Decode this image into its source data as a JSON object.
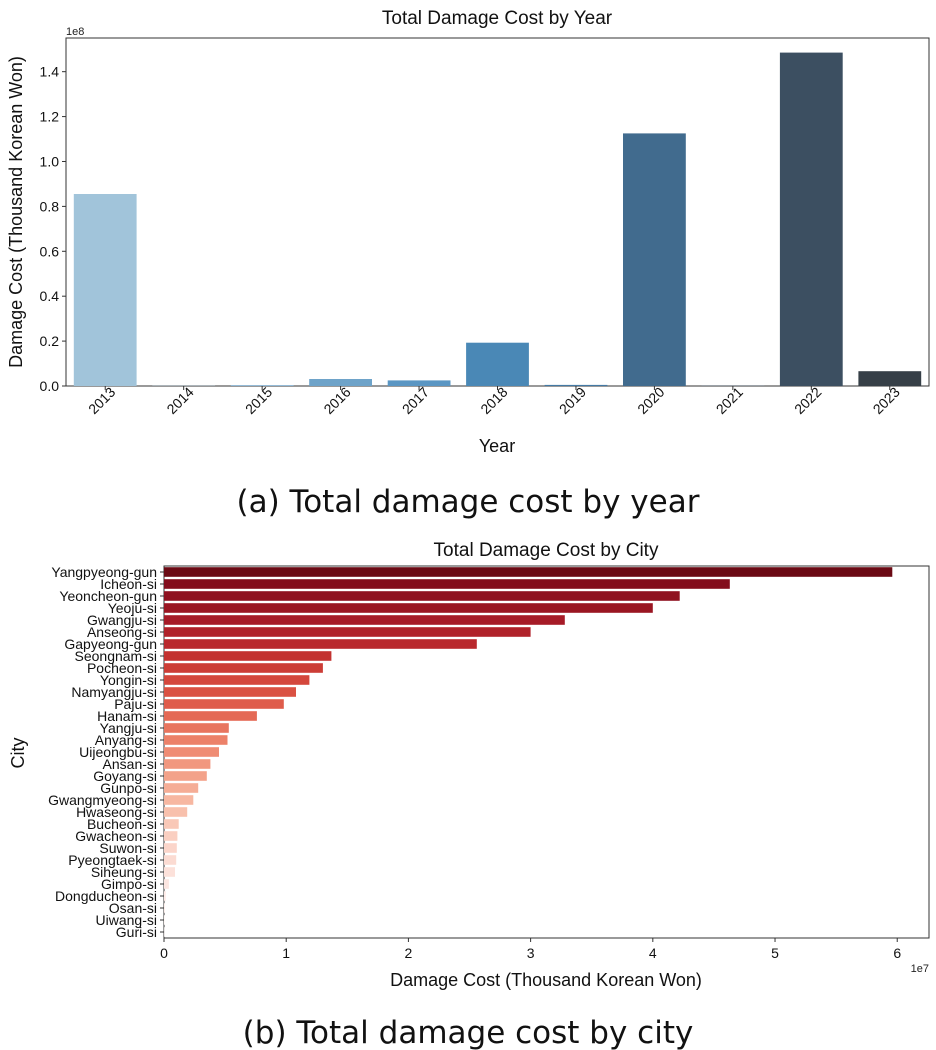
{
  "chart_data": [
    {
      "type": "bar",
      "orientation": "vertical",
      "title": "Total Damage Cost by Year",
      "xlabel": "Year",
      "ylabel": "Damage Cost (Thousand Korean Won)",
      "exponent_label": "1e8",
      "ylim": [
        0,
        155000000
      ],
      "yticks": [
        0,
        20000000,
        40000000,
        60000000,
        80000000,
        100000000,
        120000000,
        140000000
      ],
      "ytick_labels": [
        "0.0",
        "0.2",
        "0.4",
        "0.6",
        "0.8",
        "1.0",
        "1.2",
        "1.4"
      ],
      "categories": [
        "2013",
        "2014",
        "2015",
        "2016",
        "2017",
        "2018",
        "2019",
        "2020",
        "2021",
        "2022",
        "2023"
      ],
      "values": [
        85500000,
        100000,
        400000,
        3100000,
        2500000,
        19300000,
        500000,
        112500000,
        100000,
        148500000,
        6600000
      ],
      "colors": [
        "#a1c4da",
        "#96bcd6",
        "#88b3d2",
        "#6ea3c9",
        "#5a96c3",
        "#4a88b6",
        "#4479a4",
        "#416b8e",
        "#3f5f7c",
        "#3c4f61",
        "#363f47"
      ],
      "caption": "(a) Total damage cost by year"
    },
    {
      "type": "bar",
      "orientation": "horizontal",
      "title": "Total Damage Cost by City",
      "xlabel": "Damage Cost (Thousand Korean Won)",
      "ylabel": "City",
      "exponent_label": "1e7",
      "xlim": [
        0,
        62600000
      ],
      "xticks": [
        0,
        10000000,
        20000000,
        30000000,
        40000000,
        50000000,
        60000000
      ],
      "xtick_labels": [
        "0",
        "1",
        "2",
        "3",
        "4",
        "5",
        "6"
      ],
      "categories": [
        "Yangpyeong-gun",
        "Icheon-si",
        "Yeoncheon-gun",
        "Yeoju-si",
        "Gwangju-si",
        "Anseong-si",
        "Gapyeong-gun",
        "Seongnam-si",
        "Pocheon-si",
        "Yongin-si",
        "Namyangju-si",
        "Paju-si",
        "Hanam-si",
        "Yangju-si",
        "Anyang-si",
        "Uijeongbu-si",
        "Ansan-si",
        "Goyang-si",
        "Gunpo-si",
        "Gwangmyeong-si",
        "Hwaseong-si",
        "Bucheon-si",
        "Gwacheon-si",
        "Suwon-si",
        "Pyeongtaek-si",
        "Siheung-si",
        "Gimpo-si",
        "Dongducheon-si",
        "Osan-si",
        "Uiwang-si",
        "Guri-si"
      ],
      "values": [
        59600000,
        46300000,
        42200000,
        40000000,
        32800000,
        30000000,
        25600000,
        13700000,
        13000000,
        11900000,
        10800000,
        9800000,
        7600000,
        5300000,
        5200000,
        4500000,
        3800000,
        3500000,
        2800000,
        2400000,
        1900000,
        1200000,
        1100000,
        1050000,
        1000000,
        900000,
        400000,
        150000,
        80000,
        50000,
        30000
      ],
      "colors": [
        "#6b0a14",
        "#830d1c",
        "#8f1220",
        "#9a1622",
        "#a61b27",
        "#b0222a",
        "#b9282d",
        "#c33230",
        "#cc3d36",
        "#d4473c",
        "#da5142",
        "#df5c4b",
        "#e46955",
        "#e8755f",
        "#ec8169",
        "#ef8c74",
        "#f1977f",
        "#f3a28a",
        "#f5ad96",
        "#f7b7a1",
        "#f8c0ac",
        "#f9c8b7",
        "#facfc1",
        "#fbd5ca",
        "#fbdbd2",
        "#fce1da",
        "#fce6e1",
        "#fdebe7",
        "#fdefec",
        "#fef3f0",
        "#fef6f4"
      ],
      "caption": "(b) Total damage cost by city"
    }
  ]
}
